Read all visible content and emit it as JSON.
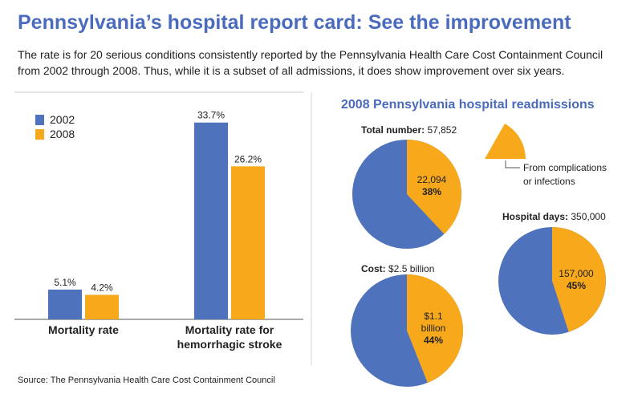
{
  "header": {
    "title": "Pennsylvania’s hospital report card: See the improvement",
    "subtitle_lines": [
      "The rate is for 20 serious conditions consistently reported by the Pennsylvania Health Care Cost Containment Council",
      "from 2002 through 2008. Thus, while it is a subset of all admissions, it does show improvement over six years."
    ]
  },
  "colors": {
    "series_2002": "#4f72bd",
    "series_2008": "#f7a81b",
    "title": "#4a6bbd",
    "text": "#222222"
  },
  "chart_data": [
    {
      "type": "bar",
      "title": "",
      "categories": [
        "Mortality rate",
        "Mortality rate for hemorrhagic stroke"
      ],
      "category_label_lines": [
        [
          "Mortality rate"
        ],
        [
          "Mortality rate for",
          "hemorrhagic stroke"
        ]
      ],
      "series": [
        {
          "name": "2002",
          "values": [
            5.1,
            33.7
          ],
          "labels": [
            "5.1%",
            "33.7%"
          ]
        },
        {
          "name": "2008",
          "values": [
            4.2,
            26.2
          ],
          "labels": [
            "4.2%",
            "26.2%"
          ]
        }
      ],
      "ylim": [
        0,
        36
      ],
      "legend": "top-left",
      "xlabel": "",
      "ylabel": ""
    },
    {
      "type": "pie",
      "title": "2008 Pennsylvania hospital readmissions",
      "legend_note": "From complications or infections",
      "legend_note_lines": [
        "From complications",
        "or infections"
      ],
      "pies": [
        {
          "label": "Total number:",
          "total": "57,852",
          "highlight_value": "22,094",
          "highlight_percent": "38%",
          "fraction": 0.38,
          "value_lines": [
            "22,094"
          ]
        },
        {
          "label": "Cost:",
          "total": "$2.5 billion",
          "highlight_value": "$1.1 billion",
          "highlight_percent": "44%",
          "fraction": 0.44,
          "value_lines": [
            "$1.1",
            "billion"
          ]
        },
        {
          "label": "Hospital days:",
          "total": "350,000",
          "highlight_value": "157,000",
          "highlight_percent": "45%",
          "fraction": 0.45,
          "value_lines": [
            "157,000"
          ]
        }
      ]
    }
  ],
  "source": "Source: The Pennsylvania Health Care Cost Containment Council"
}
